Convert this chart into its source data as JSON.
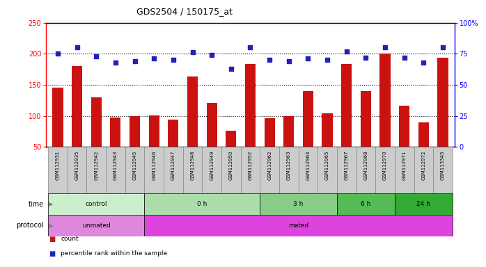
{
  "title": "GDS2504 / 150175_at",
  "samples": [
    "GSM112931",
    "GSM112935",
    "GSM112942",
    "GSM112943",
    "GSM112945",
    "GSM112946",
    "GSM112947",
    "GSM112948",
    "GSM112949",
    "GSM112950",
    "GSM112952",
    "GSM112962",
    "GSM112963",
    "GSM112964",
    "GSM112965",
    "GSM112967",
    "GSM112968",
    "GSM112970",
    "GSM112971",
    "GSM112972",
    "GSM113345"
  ],
  "counts": [
    145,
    180,
    130,
    97,
    100,
    101,
    94,
    163,
    121,
    76,
    183,
    96,
    99,
    140,
    104,
    183,
    140,
    200,
    116,
    89,
    194
  ],
  "percentiles": [
    75,
    80,
    73,
    68,
    69,
    71,
    70,
    76,
    74,
    63,
    80,
    70,
    69,
    71,
    70,
    77,
    72,
    80,
    72,
    68,
    80
  ],
  "left_ylim": [
    50,
    250
  ],
  "right_ylim": [
    0,
    100
  ],
  "left_yticks": [
    50,
    100,
    150,
    200,
    250
  ],
  "right_yticks": [
    0,
    25,
    50,
    75,
    100
  ],
  "right_yticklabels": [
    "0",
    "25",
    "50",
    "75",
    "100%"
  ],
  "bar_color": "#cc1111",
  "scatter_color": "#2222bb",
  "dotted_lines": [
    100,
    150,
    200
  ],
  "time_groups": [
    {
      "label": "control",
      "start": 0,
      "end": 4,
      "color": "#cceecc"
    },
    {
      "label": "0 h",
      "start": 5,
      "end": 10,
      "color": "#aaddaa"
    },
    {
      "label": "3 h",
      "start": 11,
      "end": 14,
      "color": "#88cc88"
    },
    {
      "label": "6 h",
      "start": 15,
      "end": 17,
      "color": "#55bb55"
    },
    {
      "label": "24 h",
      "start": 18,
      "end": 20,
      "color": "#33aa33"
    }
  ],
  "protocol_groups": [
    {
      "label": "unmated",
      "start": 0,
      "end": 4,
      "color": "#dd88dd"
    },
    {
      "label": "mated",
      "start": 5,
      "end": 20,
      "color": "#dd44dd"
    }
  ],
  "tick_label_bg": "#cccccc",
  "tick_label_border": "#888888"
}
